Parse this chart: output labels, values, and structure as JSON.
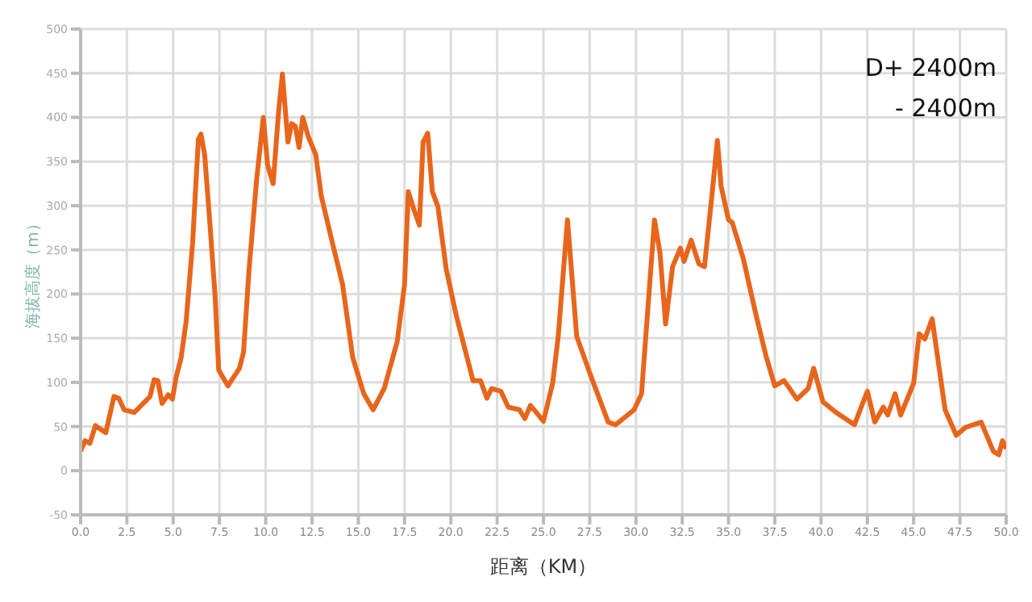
{
  "chart_data": {
    "type": "line",
    "xlabel": "距离（KM）",
    "ylabel": "海拔高度（m）",
    "annotations": [
      "D+ 2400m",
      "- 2400m"
    ],
    "xlim": [
      0,
      50
    ],
    "xticks": [
      {
        "value": 0,
        "label": "0.0"
      },
      {
        "value": 2.5,
        "label": "2.5"
      },
      {
        "value": 5,
        "label": "5.0"
      },
      {
        "value": 7.5,
        "label": "7.5"
      },
      {
        "value": 10,
        "label": "10.0"
      },
      {
        "value": 12.5,
        "label": "12.5"
      },
      {
        "value": 15,
        "label": "15.0"
      },
      {
        "value": 17.5,
        "label": "17.5"
      },
      {
        "value": 20,
        "label": "20.0"
      },
      {
        "value": 22.5,
        "label": "22.5"
      },
      {
        "value": 25,
        "label": "25.0"
      },
      {
        "value": 27.5,
        "label": "27.5"
      },
      {
        "value": 30,
        "label": "30.0"
      },
      {
        "value": 32.5,
        "label": "32.5"
      },
      {
        "value": 35,
        "label": "35.0"
      },
      {
        "value": 37.5,
        "label": "37.5"
      },
      {
        "value": 40,
        "label": "40.0"
      },
      {
        "value": 42.5,
        "label": "42.5"
      },
      {
        "value": 45,
        "label": "45.0"
      },
      {
        "value": 47.5,
        "label": "47.5"
      },
      {
        "value": 50,
        "label": "50.0"
      }
    ],
    "ylim": [
      -50,
      500
    ],
    "yticks": [
      -50,
      0,
      50,
      100,
      150,
      200,
      250,
      300,
      350,
      400,
      450,
      500
    ],
    "grid": true,
    "marker": "none",
    "line_style": "solid",
    "x": [
      0,
      0.24,
      0.5,
      0.8,
      1.36,
      1.8,
      2.06,
      2.35,
      2.9,
      3.75,
      3.97,
      4.17,
      4.4,
      4.73,
      4.96,
      5.15,
      5.43,
      5.7,
      6.05,
      6.36,
      6.5,
      6.7,
      6.98,
      7.26,
      7.46,
      7.96,
      8.58,
      8.8,
      9.1,
      9.5,
      9.87,
      10.1,
      10.4,
      10.7,
      10.9,
      11.2,
      11.4,
      11.6,
      11.8,
      12,
      12.3,
      12.7,
      13,
      13.6,
      14.15,
      14.7,
      15.3,
      15.8,
      16.4,
      17.1,
      17.5,
      17.7,
      18,
      18.3,
      18.5,
      18.75,
      19,
      19.3,
      19.75,
      20.3,
      21.2,
      21.6,
      21.95,
      22.2,
      22.7,
      23.1,
      23.7,
      24,
      24.3,
      25,
      25.5,
      25.8,
      26.3,
      26.8,
      27.6,
      28.5,
      28.9,
      29.9,
      30.3,
      31,
      31.3,
      31.6,
      31.98,
      32.4,
      32.6,
      32.98,
      33.4,
      33.7,
      34.1,
      34.4,
      34.6,
      35,
      35.2,
      35.8,
      36.5,
      37.05,
      37.5,
      38,
      38.7,
      39.3,
      39.6,
      40.1,
      40.8,
      41.8,
      42.5,
      42.9,
      43.36,
      43.6,
      44,
      44.3,
      45,
      45.3,
      45.6,
      46,
      46.7,
      47.3,
      47.8,
      48.65,
      49.3,
      49.6,
      49.8,
      50
    ],
    "series": [
      {
        "color": "#e8651c",
        "values": [
          22,
          34,
          31,
          51,
          43,
          84,
          82,
          69,
          66,
          84,
          103,
          102,
          76,
          86,
          81,
          105,
          128,
          169,
          258,
          375,
          381,
          358,
          281,
          199,
          114,
          96,
          116,
          134,
          228,
          328,
          400,
          346,
          325,
          408,
          449,
          372,
          393,
          390,
          366,
          400,
          378,
          358,
          311,
          258,
          211,
          128,
          87,
          69,
          93,
          146,
          211,
          316,
          296,
          278,
          372,
          382,
          316,
          299,
          228,
          175,
          102,
          102,
          82,
          93,
          90,
          72,
          69,
          59,
          74,
          56,
          99,
          152,
          284,
          152,
          105,
          55,
          52,
          69,
          87,
          284,
          246,
          166,
          231,
          252,
          237,
          261,
          234,
          231,
          311,
          374,
          322,
          284,
          281,
          240,
          175,
          128,
          96,
          102,
          81,
          93,
          116,
          78,
          66,
          52,
          90,
          55,
          72,
          63,
          87,
          63,
          99,
          155,
          149,
          172,
          69,
          40,
          49,
          55,
          22,
          18,
          34,
          25
        ]
      }
    ]
  }
}
